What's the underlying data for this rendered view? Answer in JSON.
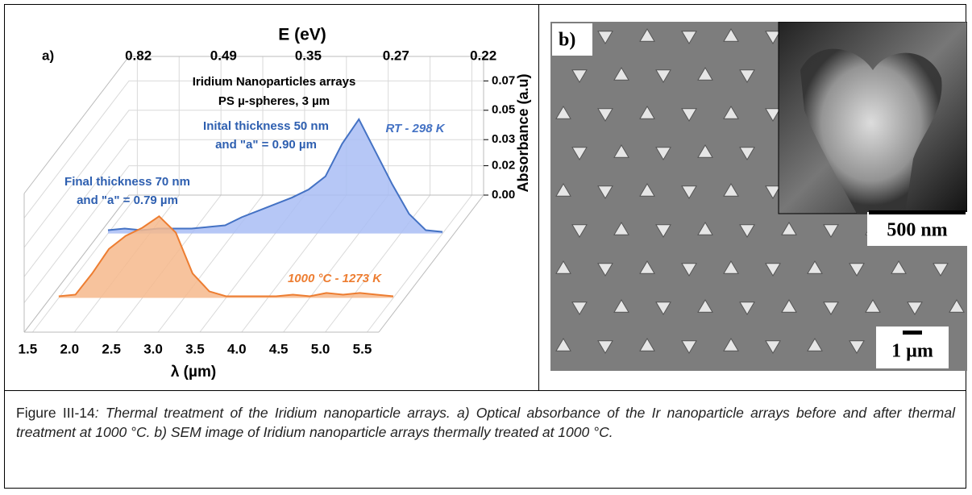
{
  "chart_data": {
    "type": "line",
    "panel_label": "a)",
    "x2label": "E (eV)",
    "x2ticks": [
      0.82,
      0.49,
      0.35,
      0.27,
      0.22
    ],
    "xlabel": "λ (µm)",
    "ylabel": "Absorbance (a.u)",
    "xlim": [
      1.4,
      5.64
    ],
    "xticks": [
      1.5,
      {
        "value": 2,
        "label": "2.0"
      },
      2.5,
      {
        "value": 3,
        "label": "3.0"
      },
      3.5,
      {
        "value": 4,
        "label": "4.0"
      },
      4.5,
      {
        "value": 5,
        "label": "5.0"
      },
      5.5
    ],
    "ylim": [
      0,
      0.085
    ],
    "yticks": [
      {
        "value": 0,
        "label": "0.00"
      },
      {
        "value": 0.018,
        "label": "0.02"
      },
      {
        "value": 0.034,
        "label": "0.03"
      },
      {
        "value": 0.052,
        "label": "0.05"
      },
      0.07
    ],
    "grid": true,
    "annotations": [
      "Iridium Nanoparticles arrays",
      "PS µ-spheres, 3 µm",
      "Inital thickness 50 nm",
      "and \"a\" = 0.90 µm",
      "Final thickness 70 nm",
      "and \"a\" = 0.79 µm"
    ],
    "x": [
      1.5,
      1.7,
      1.9,
      2.1,
      2.3,
      2.5,
      2.7,
      2.9,
      3.1,
      3.3,
      3.5,
      3.7,
      3.9,
      4.1,
      4.3,
      4.5,
      4.7,
      4.9,
      5.1,
      5.3,
      5.5
    ],
    "series": [
      {
        "name": "RT - 298 K",
        "color": "#4472c4",
        "fill": "#a9bdf5",
        "values": [
          0.002,
          0.003,
          0.002,
          0.003,
          0.003,
          0.003,
          0.004,
          0.005,
          0.01,
          0.014,
          0.018,
          0.022,
          0.027,
          0.035,
          0.055,
          0.07,
          0.05,
          0.03,
          0.012,
          0.002,
          0.001
        ]
      },
      {
        "name": "1000 °C - 1273 K",
        "color": "#ed7d31",
        "fill": "#f6b98c",
        "values": [
          0.001,
          0.002,
          0.015,
          0.03,
          0.038,
          0.043,
          0.05,
          0.04,
          0.015,
          0.004,
          0.001,
          0.001,
          0.001,
          0.001,
          0.002,
          0.001,
          0.003,
          0.002,
          0.003,
          0.002,
          0.001
        ]
      }
    ]
  },
  "panel_b": {
    "label": "b)",
    "inset_scale": "500 nm",
    "main_scale": "1 µm"
  },
  "caption": {
    "number": "Figure III-14",
    "text": ": Thermal treatment of the Iridium nanoparticle arrays. a) Optical absorbance of the Ir nanoparticle arrays before and after thermal treatment at 1000 °C. b) SEM image of Iridium nanoparticle arrays thermally treated at 1000 °C."
  }
}
